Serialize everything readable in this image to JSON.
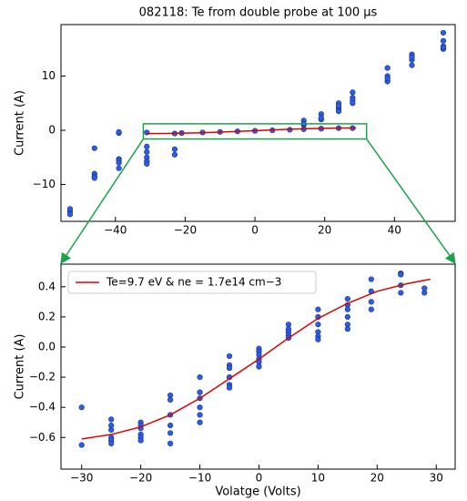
{
  "chart_data": [
    {
      "type": "scatter",
      "title": "082118: Te from double probe at 100 μs",
      "ylabel": "Current (A)",
      "xlim": [
        -55.6,
        57.4
      ],
      "ylim": [
        -16.8,
        19.5
      ],
      "xticks": [
        {
          "value": -40,
          "label": "−40"
        },
        {
          "value": -20,
          "label": "−20"
        },
        0,
        20,
        40
      ],
      "yticks": [
        {
          "value": -10,
          "label": "−10"
        },
        0,
        10
      ],
      "zoom_box": {
        "xlim": [
          -32,
          32
        ],
        "ylim": [
          -1.6,
          1.2
        ],
        "color": "#1aa34a"
      },
      "series": [
        {
          "type": "scatter",
          "color": "#2a5ee8",
          "x": [
            -53,
            -53,
            -53,
            -46,
            -46,
            -46,
            -46,
            -39,
            -39,
            -39,
            -39,
            -39,
            -39,
            -31,
            -31,
            -31,
            -31,
            -31,
            -31,
            -23,
            -23,
            -23,
            -21,
            -15,
            -10,
            -5,
            0,
            5,
            10,
            14,
            14,
            14,
            14,
            19,
            19,
            19,
            19,
            24,
            24,
            24,
            24,
            24,
            28,
            28,
            28,
            28,
            28,
            38,
            38,
            38,
            38,
            45,
            45,
            45,
            45,
            54,
            54,
            54,
            54,
            54
          ],
          "values": [
            -15,
            -15.5,
            -14.5,
            -3.3,
            -8,
            -8.5,
            -8.8,
            -0.5,
            -0.3,
            -5.3,
            -5.5,
            -7,
            -6,
            -0.4,
            -3,
            -4,
            -5,
            -5.7,
            -6.2,
            -0.6,
            -3.5,
            -4.5,
            -0.5,
            -0.4,
            -0.3,
            -0.2,
            -0.1,
            0,
            0.1,
            0.2,
            1.8,
            1,
            1.2,
            0.3,
            3,
            2,
            2.3,
            0.4,
            5,
            4,
            4.5,
            3.5,
            0.4,
            7,
            6,
            5.5,
            5,
            11.5,
            10,
            9,
            9.5,
            14,
            13,
            12,
            13.5,
            18,
            16.5,
            15.5,
            15,
            15.3
          ]
        },
        {
          "type": "line",
          "color": "#e00000",
          "x": [
            -31,
            -25,
            -20,
            -15,
            -10,
            -5,
            0,
            5,
            10,
            15,
            20,
            25,
            29
          ],
          "values": [
            -0.61,
            -0.58,
            -0.53,
            -0.45,
            -0.34,
            -0.21,
            -0.08,
            0.06,
            0.19,
            0.29,
            0.37,
            0.42,
            0.45
          ]
        }
      ]
    },
    {
      "type": "scatter",
      "xlabel": "Volatge (Volts)",
      "ylabel": "Current (A)",
      "xlim": [
        -33.5,
        33.2
      ],
      "ylim": [
        -0.81,
        0.55
      ],
      "xticks": [
        {
          "value": -30,
          "label": "−30"
        },
        {
          "value": -20,
          "label": "−20"
        },
        {
          "value": -10,
          "label": "−10"
        },
        0,
        10,
        20,
        30
      ],
      "yticks": [
        {
          "value": -0.6,
          "label": "−0.6"
        },
        {
          "value": -0.4,
          "label": "−0.4"
        },
        {
          "value": -0.2,
          "label": "−0.2"
        },
        {
          "value": 0,
          "label": "0.0"
        },
        0.2,
        0.4
      ],
      "legend": "upper left",
      "series": [
        {
          "type": "scatter",
          "color": "#2a5ee8",
          "x": [
            -30,
            -30,
            -25,
            -25,
            -25,
            -25,
            -25,
            -25,
            -20,
            -20,
            -20,
            -20,
            -20,
            -20,
            -15,
            -15,
            -15,
            -15,
            -15,
            -15,
            -10,
            -10,
            -10,
            -10,
            -10,
            -10,
            -5,
            -5,
            -5,
            -5,
            -5,
            -5,
            0,
            0,
            0,
            0,
            0,
            0,
            5,
            5,
            5,
            5,
            5,
            10,
            10,
            10,
            10,
            10,
            10,
            15,
            15,
            15,
            15,
            15,
            15,
            19,
            19,
            19,
            19,
            24,
            24,
            24,
            24,
            28,
            28
          ],
          "values": [
            -0.65,
            -0.4,
            -0.48,
            -0.52,
            -0.55,
            -0.6,
            -0.62,
            -0.64,
            -0.5,
            -0.52,
            -0.54,
            -0.58,
            -0.6,
            -0.62,
            -0.32,
            -0.35,
            -0.45,
            -0.52,
            -0.57,
            -0.64,
            -0.2,
            -0.3,
            -0.34,
            -0.4,
            -0.45,
            -0.5,
            -0.06,
            -0.12,
            -0.14,
            -0.2,
            -0.25,
            -0.27,
            -0.01,
            -0.03,
            -0.05,
            -0.08,
            -0.1,
            -0.13,
            0.15,
            0.12,
            0.1,
            0.08,
            0.06,
            0.25,
            0.2,
            0.15,
            0.1,
            0.07,
            0.05,
            0.32,
            0.28,
            0.25,
            0.2,
            0.15,
            0.12,
            0.45,
            0.37,
            0.3,
            0.25,
            0.49,
            0.48,
            0.41,
            0.36,
            0.36,
            0.39
          ]
        },
        {
          "type": "line",
          "color": "#e00000",
          "name": "Te=9.7 eV & ne = 1.7e14 cm−3",
          "x": [
            -30,
            -25,
            -20,
            -15,
            -10,
            -5,
            0,
            5,
            10,
            15,
            20,
            25,
            29
          ],
          "values": [
            -0.61,
            -0.58,
            -0.53,
            -0.45,
            -0.34,
            -0.21,
            -0.08,
            0.06,
            0.19,
            0.29,
            0.37,
            0.42,
            0.45
          ]
        }
      ]
    }
  ]
}
